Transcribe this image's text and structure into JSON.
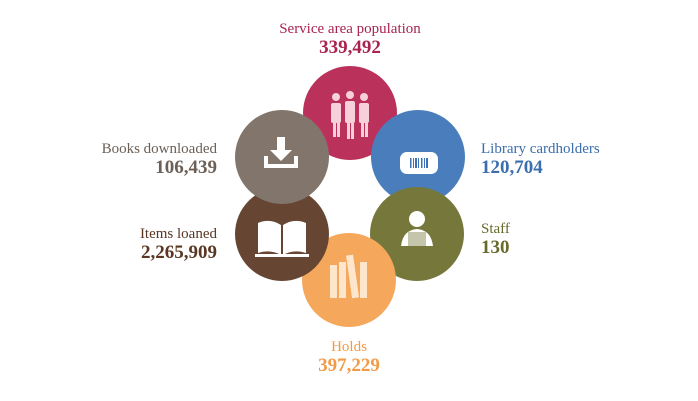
{
  "items": [
    {
      "label": "Service area population",
      "value": "339,492"
    },
    {
      "label": "Library cardholders",
      "value": "120,704"
    },
    {
      "label": "Staff",
      "value": "130"
    },
    {
      "label": "Holds",
      "value": "397,229"
    },
    {
      "label": "Items loaned",
      "value": "2,265,909"
    },
    {
      "label": "Books downloaded",
      "value": "106,439"
    }
  ]
}
